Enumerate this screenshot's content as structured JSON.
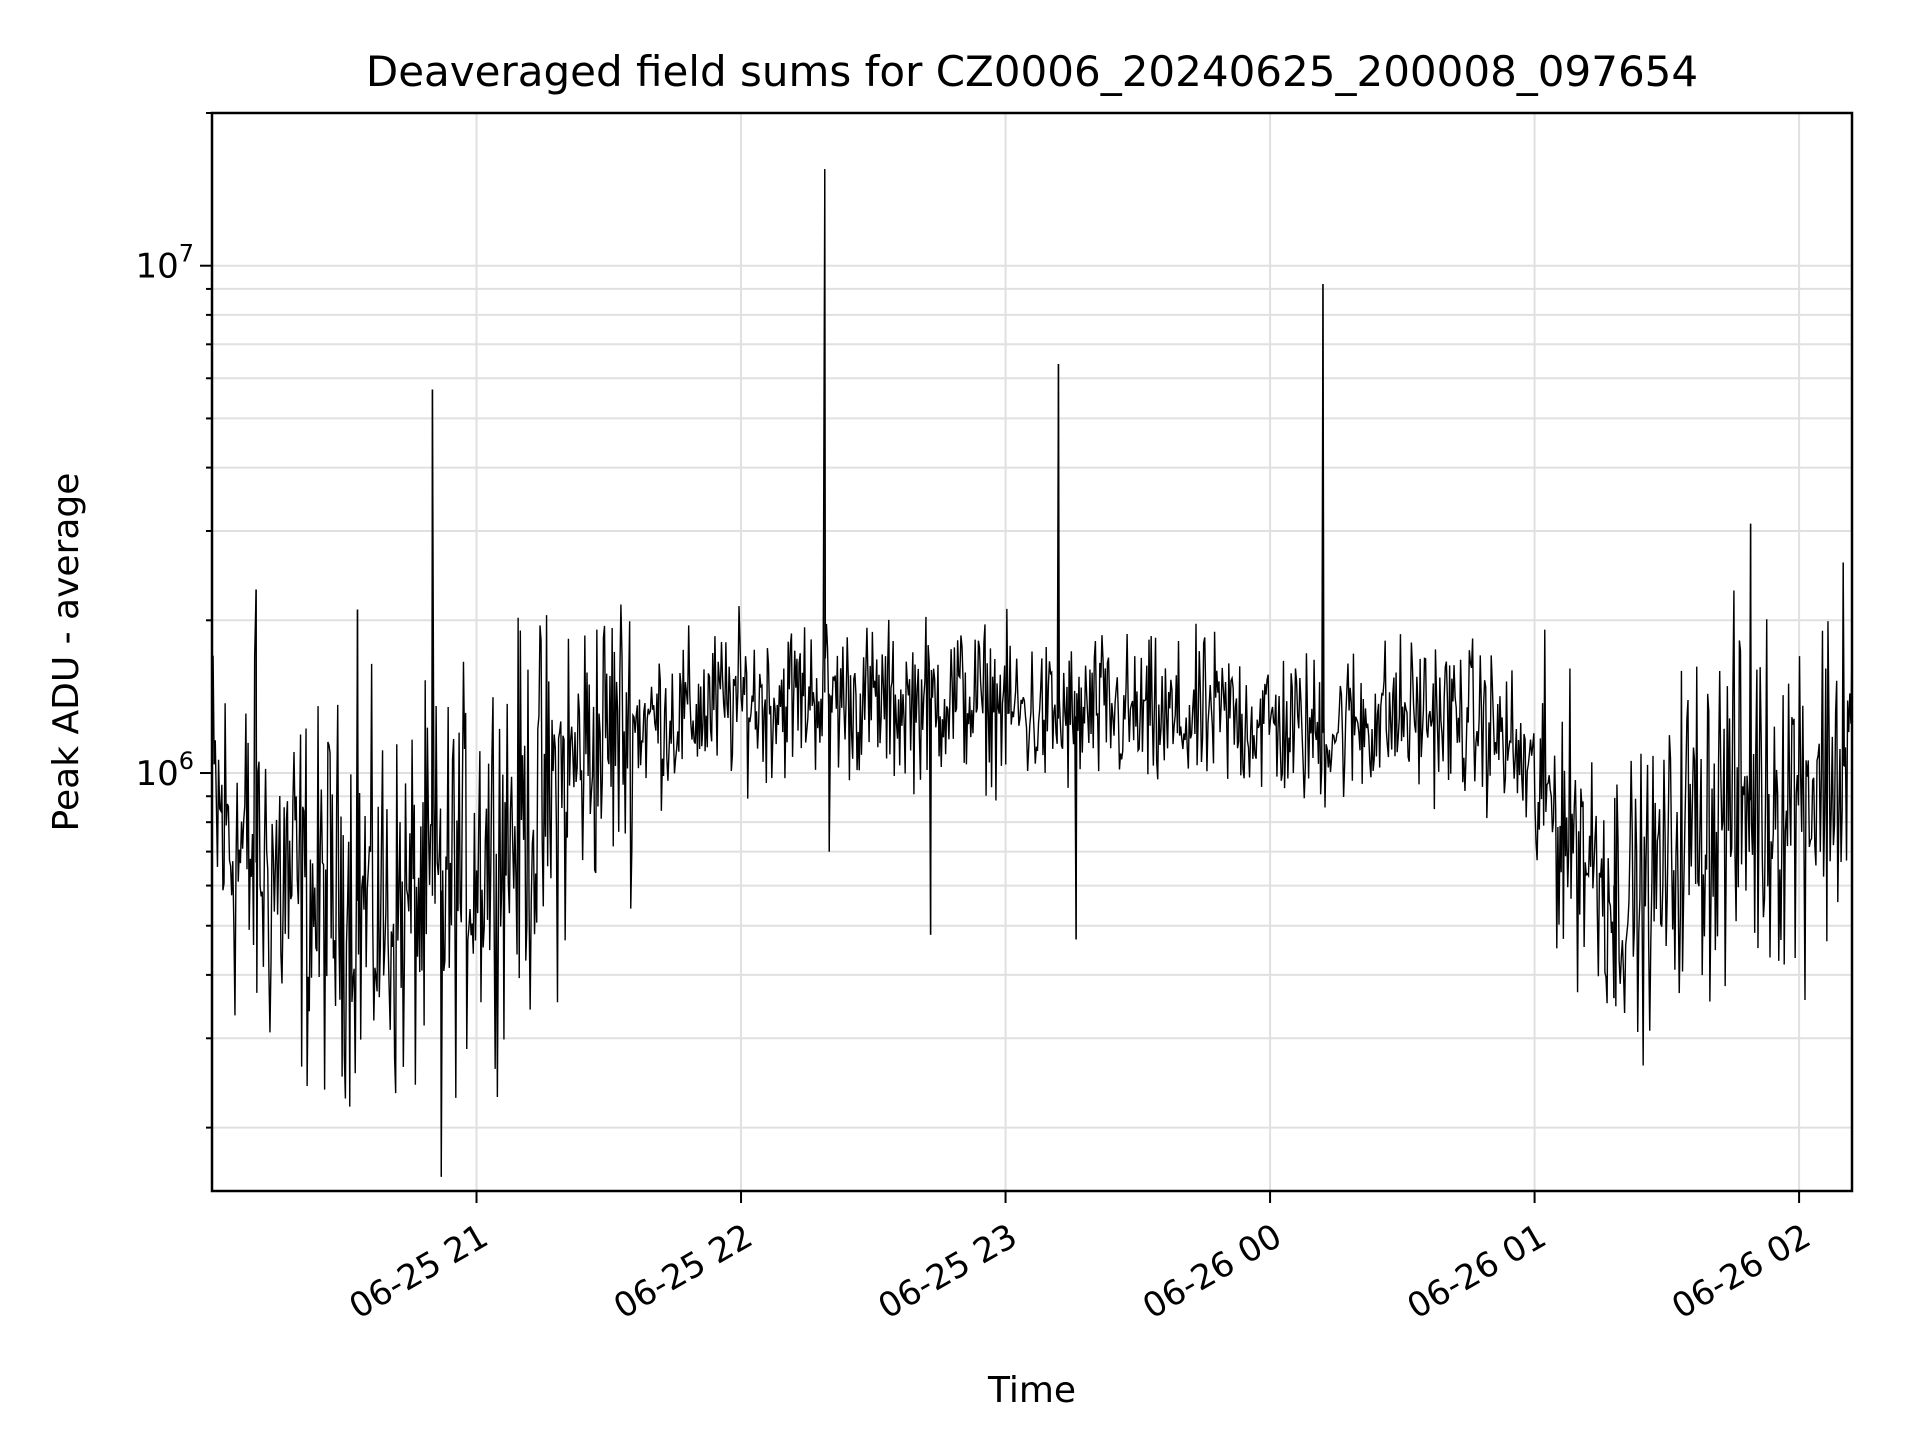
{
  "chart_data": {
    "type": "line",
    "title": "Deaveraged field sums for CZ0006_20240625_200008_097654",
    "xlabel": "Time",
    "ylabel": "Peak ADU - average",
    "x_type": "datetime",
    "y_scale": "log",
    "xlim": [
      "2024-06-25 20:00",
      "2024-06-26 02:12"
    ],
    "ylim": [
      150000,
      20000000
    ],
    "grid": true,
    "legend": "none",
    "x_ticks": [
      "2024-06-25 21:00",
      "2024-06-25 22:00",
      "2024-06-25 23:00",
      "2024-06-26 00:00",
      "2024-06-26 01:00",
      "2024-06-26 02:00"
    ],
    "x_tick_labels": [
      "06-25 21",
      "06-25 22",
      "06-25 23",
      "06-26 00",
      "06-26 01",
      "06-26 02"
    ],
    "y_major_ticks": [
      {
        "value": 1000000,
        "base": "10",
        "exp": "6"
      },
      {
        "value": 10000000,
        "base": "10",
        "exp": "7"
      }
    ],
    "series": [
      {
        "color": "#000000",
        "x": [
          "2024-06-25 20:00",
          "2024-06-25 20:06",
          "2024-06-25 20:12",
          "2024-06-25 20:18",
          "2024-06-25 20:24",
          "2024-06-25 20:30",
          "2024-06-25 20:36",
          "2024-06-25 20:42",
          "2024-06-25 20:48",
          "2024-06-25 20:54",
          "2024-06-25 21:00",
          "2024-06-25 21:06",
          "2024-06-25 21:12",
          "2024-06-25 21:18",
          "2024-06-25 21:24",
          "2024-06-25 21:30",
          "2024-06-25 21:36",
          "2024-06-25 21:42",
          "2024-06-25 21:48",
          "2024-06-25 21:54",
          "2024-06-25 22:00",
          "2024-06-25 22:06",
          "2024-06-25 22:12",
          "2024-06-25 22:18",
          "2024-06-25 22:24",
          "2024-06-25 22:30",
          "2024-06-25 22:36",
          "2024-06-25 22:42",
          "2024-06-25 22:48",
          "2024-06-25 22:54",
          "2024-06-25 23:00",
          "2024-06-25 23:06",
          "2024-06-25 23:12",
          "2024-06-25 23:18",
          "2024-06-25 23:24",
          "2024-06-25 23:30",
          "2024-06-25 23:36",
          "2024-06-25 23:42",
          "2024-06-25 23:48",
          "2024-06-25 23:54",
          "2024-06-26 00:00",
          "2024-06-26 00:06",
          "2024-06-26 00:12",
          "2024-06-26 00:18",
          "2024-06-26 00:24",
          "2024-06-26 00:30",
          "2024-06-26 00:36",
          "2024-06-26 00:42",
          "2024-06-26 00:48",
          "2024-06-26 00:54",
          "2024-06-26 01:00",
          "2024-06-26 01:06",
          "2024-06-26 01:12",
          "2024-06-26 01:18",
          "2024-06-26 01:24",
          "2024-06-26 01:30",
          "2024-06-26 01:36",
          "2024-06-26 01:42",
          "2024-06-26 01:48",
          "2024-06-26 01:54",
          "2024-06-26 02:00",
          "2024-06-26 02:06",
          "2024-06-26 02:12"
        ],
        "y": [
          850000,
          700000,
          650000,
          600000,
          550000,
          580000,
          540000,
          520000,
          560000,
          600000,
          700000,
          760000,
          800000,
          900000,
          1100000,
          1200000,
          1250000,
          1280000,
          1300000,
          1350000,
          1400000,
          1380000,
          1420000,
          1450000,
          1400000,
          1380000,
          1350000,
          1400000,
          1420000,
          1380000,
          1350000,
          1300000,
          1280000,
          1300000,
          1320000,
          1280000,
          1250000,
          1270000,
          1300000,
          1280000,
          1250000,
          1220000,
          1200000,
          1250000,
          1280000,
          1300000,
          1320000,
          1280000,
          1250000,
          1150000,
          950000,
          820000,
          700000,
          600000,
          560000,
          650000,
          800000,
          850000,
          880000,
          900000,
          950000,
          1000000,
          1050000
        ]
      }
    ],
    "spikes": [
      {
        "x": "2024-06-25 20:10",
        "y": 2300000
      },
      {
        "x": "2024-06-25 20:33",
        "y": 2100000
      },
      {
        "x": "2024-06-25 20:50",
        "y": 5700000
      },
      {
        "x": "2024-06-25 20:52",
        "y": 160000
      },
      {
        "x": "2024-06-25 22:19",
        "y": 15500000
      },
      {
        "x": "2024-06-25 22:20",
        "y": 700000
      },
      {
        "x": "2024-06-25 22:43",
        "y": 480000
      },
      {
        "x": "2024-06-25 23:12",
        "y": 6400000
      },
      {
        "x": "2024-06-25 23:16",
        "y": 470000
      },
      {
        "x": "2024-06-26 00:12",
        "y": 9200000
      },
      {
        "x": "2024-06-26 01:18",
        "y": 360000
      },
      {
        "x": "2024-06-26 01:49",
        "y": 3100000
      },
      {
        "x": "2024-06-26 02:10",
        "y": 2600000
      }
    ]
  }
}
